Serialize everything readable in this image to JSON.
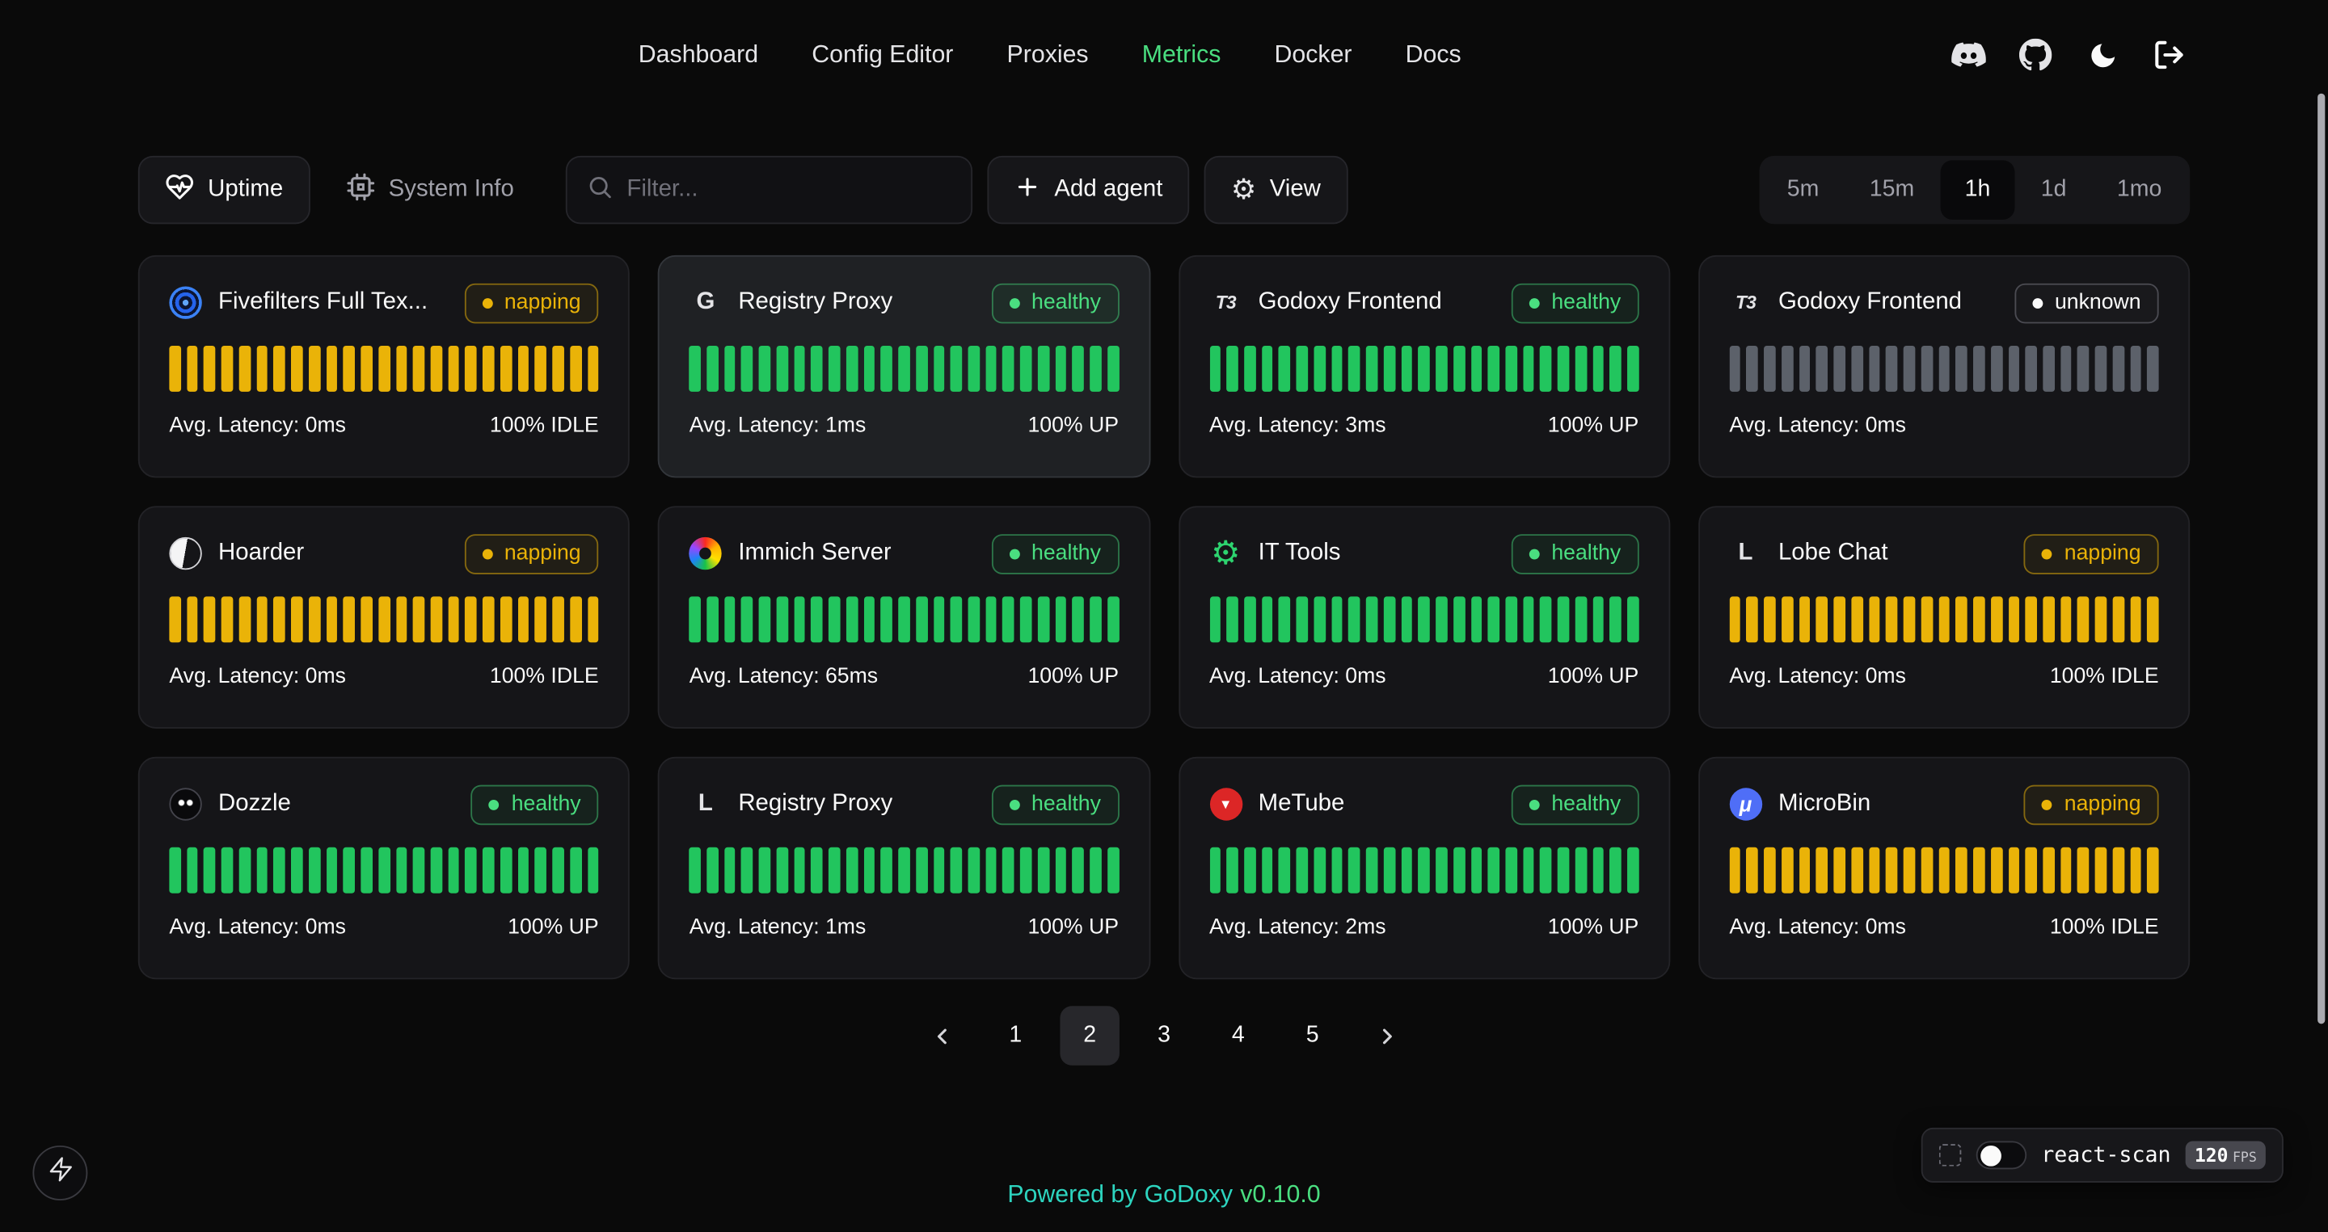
{
  "nav": {
    "items": [
      {
        "label": "Dashboard",
        "active": false
      },
      {
        "label": "Config Editor",
        "active": false
      },
      {
        "label": "Proxies",
        "active": false
      },
      {
        "label": "Metrics",
        "active": true
      },
      {
        "label": "Docker",
        "active": false
      },
      {
        "label": "Docs",
        "active": false
      }
    ]
  },
  "toolbar": {
    "uptime_tab": "Uptime",
    "system_info_tab": "System Info",
    "filter_placeholder": "Filter...",
    "add_agent_label": "Add agent",
    "view_label": "View",
    "time_ranges": [
      {
        "label": "5m",
        "active": false
      },
      {
        "label": "15m",
        "active": false
      },
      {
        "label": "1h",
        "active": true
      },
      {
        "label": "1d",
        "active": false
      },
      {
        "label": "1mo",
        "active": false
      }
    ]
  },
  "bars_per_card": 25,
  "colors": {
    "healthy": "#22c55e",
    "napping": "#eab308",
    "unknown_bar": "#5c616a",
    "accent_green": "#4ade80",
    "teal": "#2dd4bf"
  },
  "cards": [
    {
      "name": "Fivefilters Full Tex...",
      "icon": "fivefilters",
      "letter": "",
      "status": "napping",
      "latency": "Avg. Latency: 0ms",
      "uptime": "100% IDLE",
      "highlight": false
    },
    {
      "name": "Registry Proxy",
      "icon": "letter",
      "letter": "G",
      "status": "healthy",
      "latency": "Avg. Latency: 1ms",
      "uptime": "100% UP",
      "highlight": true
    },
    {
      "name": "Godoxy Frontend",
      "icon": "letter",
      "letter": "T3",
      "status": "healthy",
      "latency": "Avg. Latency: 3ms",
      "uptime": "100% UP",
      "highlight": false
    },
    {
      "name": "Godoxy Frontend",
      "icon": "letter",
      "letter": "T3",
      "status": "unknown",
      "latency": "Avg. Latency: 0ms",
      "uptime": "",
      "highlight": false
    },
    {
      "name": "Hoarder",
      "icon": "hoarder",
      "letter": "",
      "status": "napping",
      "latency": "Avg. Latency: 0ms",
      "uptime": "100% IDLE",
      "highlight": false
    },
    {
      "name": "Immich Server",
      "icon": "immich",
      "letter": "",
      "status": "healthy",
      "latency": "Avg. Latency: 65ms",
      "uptime": "100% UP",
      "highlight": false
    },
    {
      "name": "IT Tools",
      "icon": "ittools",
      "letter": "",
      "status": "healthy",
      "latency": "Avg. Latency: 0ms",
      "uptime": "100% UP",
      "highlight": false
    },
    {
      "name": "Lobe Chat",
      "icon": "letter",
      "letter": "L",
      "status": "napping",
      "latency": "Avg. Latency: 0ms",
      "uptime": "100% IDLE",
      "highlight": false
    },
    {
      "name": "Dozzle",
      "icon": "dozzle",
      "letter": "",
      "status": "healthy",
      "latency": "Avg. Latency: 0ms",
      "uptime": "100% UP",
      "highlight": false
    },
    {
      "name": "Registry Proxy",
      "icon": "letter",
      "letter": "L",
      "status": "healthy",
      "latency": "Avg. Latency: 1ms",
      "uptime": "100% UP",
      "highlight": false
    },
    {
      "name": "MeTube",
      "icon": "metube",
      "letter": "",
      "status": "healthy",
      "latency": "Avg. Latency: 2ms",
      "uptime": "100% UP",
      "highlight": false
    },
    {
      "name": "MicroBin",
      "icon": "microbin",
      "letter": "",
      "status": "napping",
      "latency": "Avg. Latency: 0ms",
      "uptime": "100% IDLE",
      "highlight": false
    }
  ],
  "pagination": {
    "pages": [
      "1",
      "2",
      "3",
      "4",
      "5"
    ],
    "active": "2"
  },
  "footer": {
    "powered_by": "Powered by",
    "brand": "GoDoxy",
    "version": "v0.10.0"
  },
  "react_scan": {
    "label": "react-scan",
    "fps": "120",
    "fps_unit": "FPS",
    "enabled": false
  }
}
